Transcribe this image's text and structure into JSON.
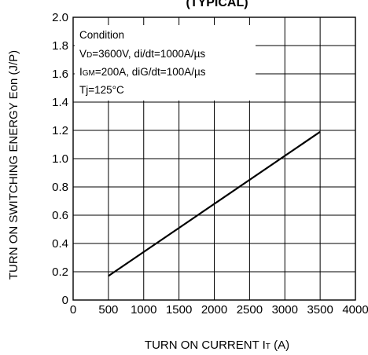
{
  "chart_data": {
    "type": "line",
    "title": "(TYPICAL)",
    "xlabel_main": "TURN ON CURRENT I",
    "xlabel_sub": "T",
    "xlabel_unit": " (A)",
    "ylabel": "TURN ON SWITCHING ENERGY Eon (J/P)",
    "xlim": [
      0,
      4000
    ],
    "ylim": [
      0,
      2.0
    ],
    "x_ticks": [
      0,
      500,
      1000,
      1500,
      2000,
      2500,
      3000,
      3500,
      4000
    ],
    "y_ticks": [
      "0",
      "0.2",
      "0.4",
      "0.6",
      "0.8",
      "1.0",
      "1.2",
      "1.4",
      "1.6",
      "1.8",
      "2.0"
    ],
    "grid": true,
    "series": [
      {
        "x": [
          500,
          3500
        ],
        "y": [
          0.17,
          1.19
        ]
      }
    ],
    "condition": {
      "heading": "Condition",
      "line1_prefix": "V",
      "line1_sub": "D",
      "line1_rest": "=3600V, di/dt=1000A/µs",
      "line2_prefix": "I",
      "line2_sub": "GM",
      "line2_rest": "=200A, diG/dt=100A/µs",
      "line3": "Tj=125°C"
    }
  }
}
